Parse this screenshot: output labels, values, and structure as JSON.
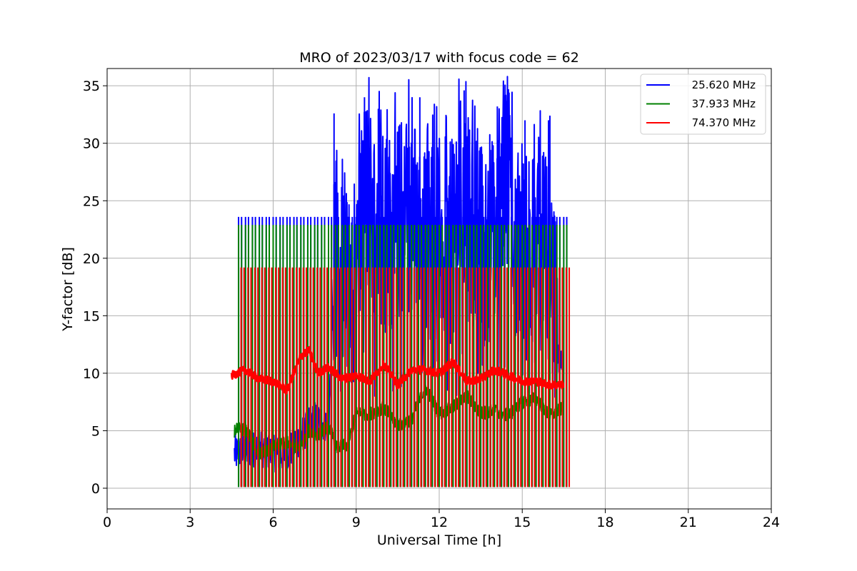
{
  "chart_data": {
    "type": "line",
    "title": "MRO of 2023/03/17 with focus code = 62",
    "xlabel": "Universal Time [h]",
    "ylabel": "Y-factor [dB]",
    "xlim": [
      0,
      24
    ],
    "ylim": [
      -1.8,
      36.5
    ],
    "xticks": [
      0,
      3,
      6,
      9,
      12,
      15,
      18,
      21,
      24
    ],
    "yticks": [
      0,
      5,
      10,
      15,
      20,
      25,
      30,
      35
    ],
    "grid": true,
    "legend_position": "top-right",
    "series": [
      {
        "name": "25.620 MHz",
        "color": "#0000ff",
        "baseline_profile": {
          "x": [
            4.6,
            5.0,
            5.5,
            6.0,
            6.5,
            7.0,
            7.5,
            8.0,
            8.2,
            8.5,
            9.0,
            9.3,
            9.6,
            10.0,
            10.5,
            11.0,
            11.5,
            12.0,
            12.5,
            12.8,
            13.2,
            13.6,
            14.0,
            14.4,
            14.8,
            15.2,
            15.6,
            16.0,
            16.3,
            16.5
          ],
          "y": [
            3.0,
            3.2,
            3.5,
            3.0,
            3.0,
            4.5,
            6.0,
            5.5,
            18.0,
            17.0,
            18.0,
            26.0,
            24.0,
            22.0,
            23.0,
            24.0,
            21.0,
            22.0,
            21.0,
            26.0,
            22.0,
            21.0,
            22.0,
            28.0,
            21.0,
            20.0,
            21.0,
            20.0,
            11.0,
            10.0
          ]
        },
        "peaks": [
          [
            8.2,
            32.6
          ],
          [
            9.3,
            34.0
          ],
          [
            9.8,
            33.0
          ],
          [
            11.3,
            34.0
          ],
          [
            12.9,
            34.6
          ],
          [
            14.1,
            33.2
          ],
          [
            14.5,
            34.7
          ],
          [
            15.1,
            32.0
          ],
          [
            16.0,
            32.4
          ]
        ],
        "pulse_top": 23.6
      },
      {
        "name": "37.933 MHz",
        "color": "#008000",
        "baseline_profile": {
          "x": [
            4.6,
            5.0,
            5.5,
            6.0,
            6.5,
            7.0,
            7.3,
            7.6,
            8.0,
            8.3,
            8.7,
            9.0,
            9.5,
            10.0,
            10.5,
            11.0,
            11.5,
            12.0,
            12.5,
            13.0,
            13.5,
            14.0,
            14.5,
            15.0,
            15.5,
            16.0,
            16.5
          ],
          "y": [
            5.0,
            5.2,
            3.0,
            3.5,
            4.0,
            3.5,
            5.0,
            4.5,
            5.5,
            3.5,
            3.8,
            6.5,
            6.5,
            7.0,
            5.5,
            6.0,
            8.8,
            6.5,
            7.0,
            8.0,
            6.5,
            6.8,
            6.3,
            7.5,
            7.8,
            6.3,
            7.0
          ]
        },
        "pulse_top": 22.9
      },
      {
        "name": "74.370 MHz",
        "color": "#ff0000",
        "baseline_profile": {
          "x": [
            4.5,
            5.0,
            5.5,
            6.0,
            6.5,
            7.0,
            7.3,
            7.6,
            8.0,
            8.5,
            9.0,
            9.5,
            10.0,
            10.5,
            11.0,
            11.5,
            12.0,
            12.5,
            13.0,
            13.5,
            14.0,
            14.5,
            15.0,
            15.5,
            16.0,
            16.5
          ],
          "y": [
            9.8,
            10.3,
            9.5,
            9.3,
            8.5,
            11.5,
            12.0,
            10.0,
            10.5,
            9.5,
            9.8,
            9.3,
            10.8,
            9.0,
            10.3,
            10.3,
            10.0,
            11.0,
            9.3,
            9.5,
            10.3,
            9.8,
            9.3,
            9.3,
            9.0,
            9.0
          ]
        },
        "pulse_top": 19.2
      }
    ],
    "calibration_pulses": {
      "start_h": 4.75,
      "end_h": 16.5,
      "interval_h": 0.25,
      "bottom": 0
    }
  }
}
